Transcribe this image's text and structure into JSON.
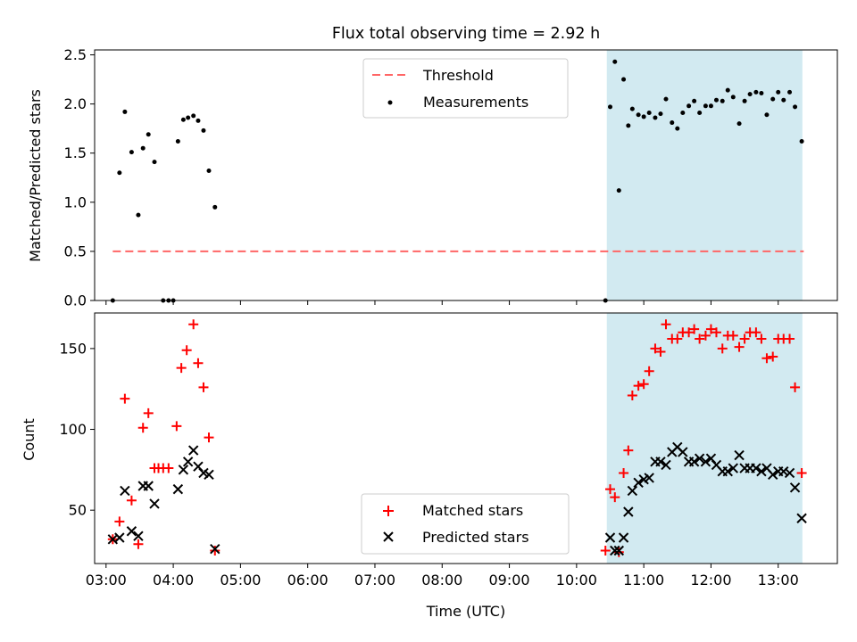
{
  "title": "Flux total observing time = 2.92 h",
  "chart_data": [
    {
      "type": "scatter",
      "name": "ratio-panel",
      "ylabel": "Matched/Predicted stars",
      "ylim": [
        0,
        2.55
      ],
      "yticks": [
        0.0,
        0.5,
        1.0,
        1.5,
        2.0,
        2.5
      ],
      "ytick_labels": [
        "0.0",
        "0.5",
        "1.0",
        "1.5",
        "2.0",
        "2.5"
      ],
      "xlim": [
        2.83,
        13.88
      ],
      "shaded_span": [
        10.45,
        13.36
      ],
      "shaded_color": "#add8e6",
      "threshold": {
        "label": "Threshold",
        "value": 0.5,
        "x": [
          3.1,
          13.38
        ],
        "color": "#ff6666"
      },
      "legend_loc": "upper center",
      "series": [
        {
          "name": "Measurements",
          "color": "#000000",
          "x": [
            3.1,
            3.2,
            3.28,
            3.38,
            3.48,
            3.55,
            3.63,
            3.72,
            3.85,
            3.93,
            4.0,
            4.07,
            4.15,
            4.22,
            4.3,
            4.37,
            4.45,
            4.53,
            4.62,
            10.43,
            10.5,
            10.57,
            10.63,
            10.7,
            10.77,
            10.83,
            10.92,
            11.0,
            11.08,
            11.17,
            11.25,
            11.33,
            11.42,
            11.5,
            11.58,
            11.67,
            11.75,
            11.83,
            11.92,
            12.0,
            12.08,
            12.17,
            12.25,
            12.33,
            12.42,
            12.5,
            12.58,
            12.67,
            12.75,
            12.83,
            12.92,
            13.0,
            13.08,
            13.17,
            13.25,
            13.35
          ],
          "y": [
            0.0,
            1.3,
            1.92,
            1.51,
            0.87,
            1.55,
            1.69,
            1.41,
            0.0,
            0.0,
            0.0,
            1.62,
            1.84,
            1.86,
            1.88,
            1.83,
            1.73,
            1.32,
            0.95,
            0.0,
            1.97,
            2.43,
            1.12,
            2.25,
            1.78,
            1.95,
            1.89,
            1.87,
            1.91,
            1.86,
            1.9,
            2.05,
            1.81,
            1.75,
            1.91,
            1.98,
            2.03,
            1.91,
            1.98,
            1.98,
            2.04,
            2.03,
            2.14,
            2.07,
            1.8,
            2.03,
            2.1,
            2.12,
            2.11,
            1.89,
            2.05,
            2.12,
            2.04,
            2.12,
            1.97,
            1.62
          ]
        }
      ]
    },
    {
      "type": "scatter",
      "name": "count-panel",
      "xlabel": "Time (UTC)",
      "ylabel": "Count",
      "ylim": [
        17,
        172
      ],
      "yticks": [
        50,
        100,
        150
      ],
      "ytick_labels": [
        "50",
        "100",
        "150"
      ],
      "xlim": [
        2.83,
        13.88
      ],
      "xticks": [
        3,
        4,
        5,
        6,
        7,
        8,
        9,
        10,
        11,
        12,
        13
      ],
      "xtick_labels": [
        "03:00",
        "04:00",
        "05:00",
        "06:00",
        "07:00",
        "08:00",
        "09:00",
        "10:00",
        "11:00",
        "12:00",
        "13:00"
      ],
      "shaded_span": [
        10.45,
        13.36
      ],
      "shaded_color": "#add8e6",
      "legend_loc": "lower center",
      "series": [
        {
          "name": "Matched stars",
          "marker": "+",
          "color": "#ff0000",
          "x": [
            3.1,
            3.2,
            3.28,
            3.38,
            3.48,
            3.55,
            3.63,
            3.72,
            3.78,
            3.85,
            3.93,
            4.05,
            4.12,
            4.2,
            4.3,
            4.37,
            4.45,
            4.53,
            4.62,
            10.43,
            10.5,
            10.57,
            10.63,
            10.7,
            10.77,
            10.83,
            10.92,
            11.0,
            11.08,
            11.17,
            11.25,
            11.33,
            11.42,
            11.5,
            11.58,
            11.67,
            11.75,
            11.83,
            11.92,
            12.0,
            12.08,
            12.17,
            12.25,
            12.33,
            12.42,
            12.5,
            12.58,
            12.67,
            12.75,
            12.83,
            12.92,
            13.0,
            13.08,
            13.17,
            13.25,
            13.35
          ],
          "y": [
            32,
            43,
            119,
            56,
            29,
            101,
            110,
            76,
            76,
            76,
            76,
            102,
            138,
            149,
            165,
            141,
            126,
            95,
            25,
            25,
            63,
            58,
            24,
            73,
            87,
            121,
            127,
            128,
            136,
            150,
            148,
            165,
            156,
            156,
            160,
            160,
            162,
            156,
            158,
            162,
            160,
            150,
            158,
            158,
            151,
            156,
            160,
            160,
            156,
            144,
            145,
            156,
            156,
            156,
            126,
            73
          ]
        },
        {
          "name": "Predicted stars",
          "marker": "x",
          "color": "#000000",
          "x": [
            3.1,
            3.2,
            3.28,
            3.38,
            3.48,
            3.55,
            3.63,
            3.72,
            4.07,
            4.15,
            4.22,
            4.3,
            4.37,
            4.45,
            4.53,
            4.62,
            10.5,
            10.57,
            10.63,
            10.7,
            10.77,
            10.83,
            10.92,
            11.0,
            11.08,
            11.17,
            11.25,
            11.33,
            11.42,
            11.5,
            11.58,
            11.67,
            11.75,
            11.83,
            11.92,
            12.0,
            12.08,
            12.17,
            12.25,
            12.33,
            12.42,
            12.5,
            12.58,
            12.67,
            12.75,
            12.83,
            12.92,
            13.0,
            13.08,
            13.17,
            13.25,
            13.35
          ],
          "y": [
            32,
            33,
            62,
            37,
            34,
            65,
            65,
            54,
            63,
            75,
            80,
            87,
            77,
            73,
            72,
            26,
            33,
            25,
            25,
            33,
            49,
            62,
            67,
            69,
            70,
            80,
            80,
            78,
            86,
            89,
            86,
            80,
            80,
            82,
            80,
            82,
            78,
            74,
            74,
            76,
            84,
            76,
            76,
            76,
            74,
            76,
            72,
            74,
            74,
            73,
            64,
            45
          ]
        }
      ]
    }
  ]
}
